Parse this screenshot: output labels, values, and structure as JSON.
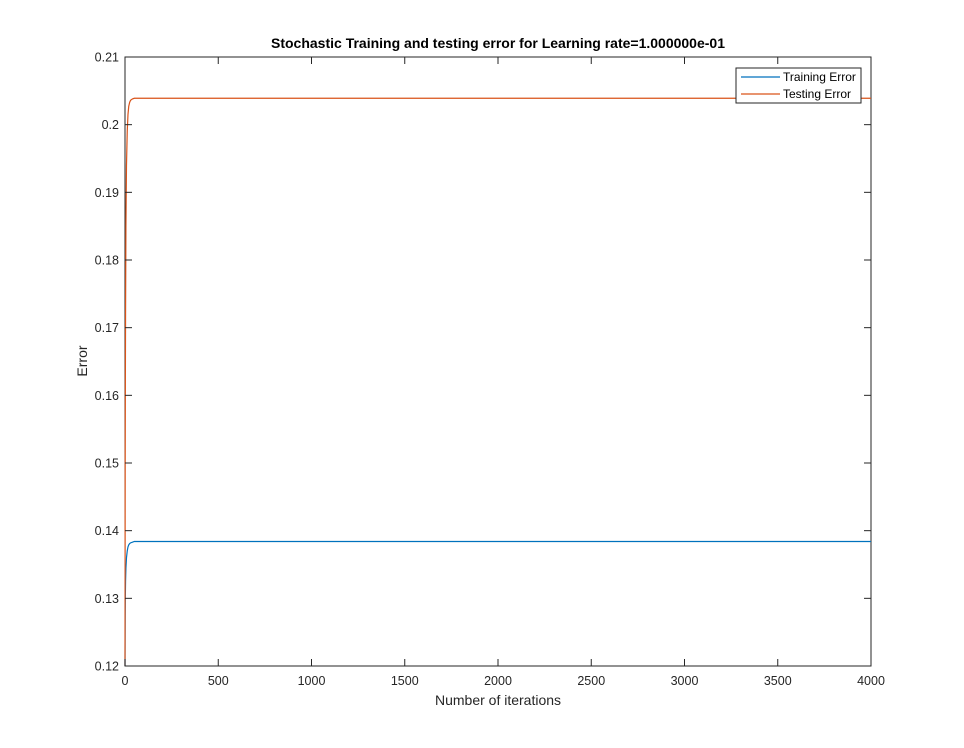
{
  "chart_data": {
    "type": "line",
    "title": "Stochastic Training and testing error for Learning rate=1.000000e-01",
    "xlabel": "Number of iterations",
    "ylabel": "Error",
    "xlim": [
      0,
      4000
    ],
    "ylim": [
      0.12,
      0.21
    ],
    "xticks": [
      0,
      500,
      1000,
      1500,
      2000,
      2500,
      3000,
      3500,
      4000
    ],
    "yticks": [
      0.12,
      0.13,
      0.14,
      0.15,
      0.16,
      0.17,
      0.18,
      0.19,
      0.2,
      0.21
    ],
    "xtick_labels": [
      "0",
      "500",
      "1000",
      "1500",
      "2000",
      "2500",
      "3000",
      "3500",
      "4000"
    ],
    "ytick_labels": [
      "0.12",
      "0.13",
      "0.14",
      "0.15",
      "0.16",
      "0.17",
      "0.18",
      "0.19",
      "0.2",
      "0.21"
    ],
    "grid": false,
    "legend_position": "top-right",
    "series": [
      {
        "name": "Training Error",
        "color": "#0072BD",
        "x": [
          0,
          1,
          2,
          3,
          5,
          8,
          12,
          16,
          20,
          25,
          30,
          40,
          50,
          70,
          100,
          200,
          500,
          1000,
          2000,
          3000,
          4000
        ],
        "y": [
          0.12,
          0.1275,
          0.1305,
          0.1325,
          0.1345,
          0.136,
          0.137,
          0.1376,
          0.1379,
          0.1381,
          0.1382,
          0.1383,
          0.1384,
          0.1384,
          0.1384,
          0.1384,
          0.1384,
          0.1384,
          0.1384,
          0.1384,
          0.1384
        ]
      },
      {
        "name": "Testing Error",
        "color": "#D95319",
        "x": [
          0,
          1,
          2,
          3,
          5,
          8,
          12,
          16,
          20,
          25,
          30,
          40,
          50,
          70,
          100,
          200,
          500,
          1000,
          2000,
          3000,
          4000
        ],
        "y": [
          0.12,
          0.15,
          0.162,
          0.172,
          0.185,
          0.194,
          0.199,
          0.2015,
          0.2027,
          0.2033,
          0.2036,
          0.2038,
          0.2039,
          0.2039,
          0.2039,
          0.2039,
          0.2039,
          0.2039,
          0.2039,
          0.2039,
          0.2039
        ]
      }
    ]
  }
}
